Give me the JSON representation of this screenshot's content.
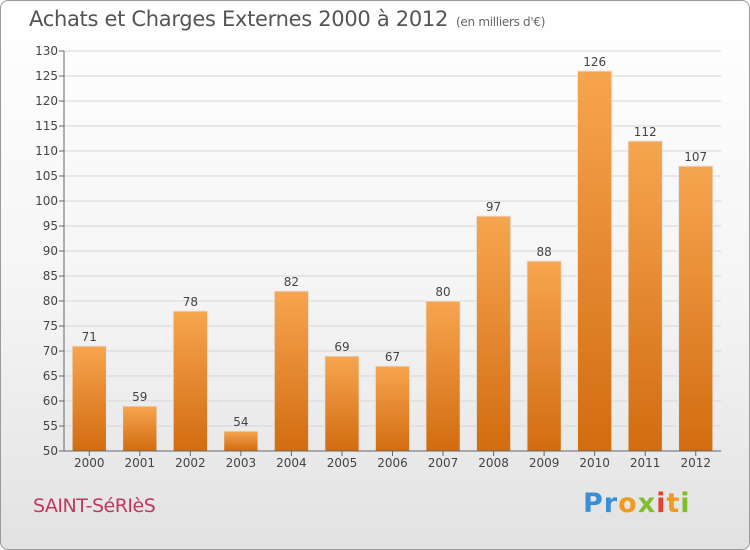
{
  "header": {
    "title": "Achats et Charges Externes 2000 à 2012",
    "unit": "(en milliers d'€)"
  },
  "footer": {
    "commune": "SAINT-SéRIèS",
    "logo": {
      "text": "Proxiti",
      "letters": [
        "P",
        "r",
        "o",
        "x",
        "i",
        "t",
        "i"
      ],
      "colors": [
        "#3a8fd6",
        "#3a8fd6",
        "#f29a1d",
        "#7fbf2b",
        "#e8402f",
        "#f29a1d",
        "#7fbf2b"
      ]
    }
  },
  "chart_data": {
    "type": "bar",
    "categories": [
      "2000",
      "2001",
      "2002",
      "2003",
      "2004",
      "2005",
      "2006",
      "2007",
      "2008",
      "2009",
      "2010",
      "2011",
      "2012"
    ],
    "values": [
      71,
      59,
      78,
      54,
      82,
      69,
      67,
      80,
      97,
      88,
      126,
      112,
      107
    ],
    "ylim": [
      50,
      130
    ],
    "ytick_step": 5,
    "grid": true,
    "bar_color_top": "#f7a550",
    "bar_color_bottom": "#d26c10"
  }
}
